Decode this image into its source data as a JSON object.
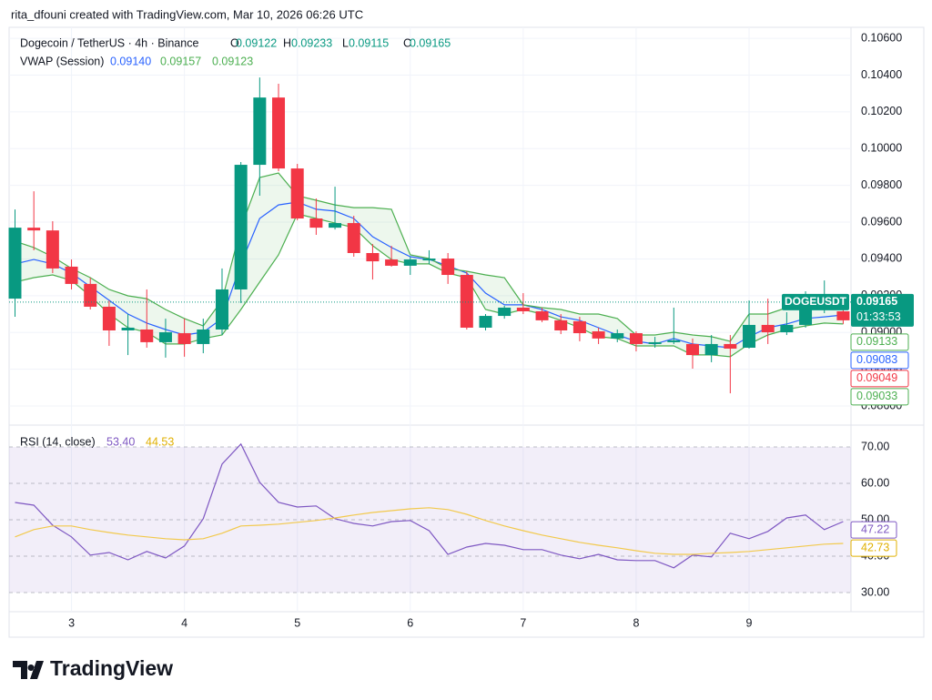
{
  "header": {
    "attribution": "rita_dfouni created with TradingView.com, Mar 10, 2026 06:26 UTC"
  },
  "chart_data": [
    {
      "type": "candlestick",
      "title": "Dogecoin / TetherUS · 4h · Binance",
      "ohlc_legend": [
        {
          "key": "O",
          "text": "0.09122"
        },
        {
          "key": "H",
          "text": "0.09233"
        },
        {
          "key": "L",
          "text": "0.09115"
        },
        {
          "key": "C",
          "text": "0.09165"
        }
      ],
      "indicator": {
        "title": "VWAP (Session)",
        "values": [
          "0.09140",
          "0.09157",
          "0.09123"
        ]
      },
      "categories": [
        null,
        null,
        null,
        "3",
        null,
        null,
        null,
        null,
        null,
        "4",
        null,
        null,
        null,
        null,
        null,
        "5",
        null,
        null,
        null,
        null,
        null,
        "6",
        null,
        null,
        null,
        null,
        null,
        "7",
        null,
        null,
        null,
        null,
        null,
        "8",
        null,
        null,
        null,
        null,
        null,
        "9",
        null,
        null,
        null,
        null,
        null
      ],
      "open": [
        0.09184,
        0.0957,
        0.09555,
        0.09358,
        0.09264,
        0.0914,
        0.09011,
        0.09016,
        0.08947,
        0.08996,
        0.08937,
        0.09016,
        0.09234,
        0.09912,
        0.10278,
        0.09892,
        0.0962,
        0.0957,
        0.09595,
        0.09432,
        0.09397,
        0.09363,
        0.09392,
        0.09402,
        0.09313,
        0.09026,
        0.0909,
        0.09135,
        0.09115,
        0.09066,
        0.09061,
        0.09006,
        0.08967,
        0.08996,
        0.08937,
        0.08947,
        0.08937,
        0.08877,
        0.08937,
        0.08917,
        0.09041,
        0.09001,
        0.09041,
        0.09125,
        0.09115
      ],
      "high": [
        0.09669,
        0.09768,
        0.09605,
        0.09397,
        0.09298,
        0.09174,
        0.091,
        0.09234,
        0.09075,
        0.09075,
        0.09075,
        0.09348,
        0.09927,
        0.10387,
        0.10353,
        0.09917,
        0.09729,
        0.09793,
        0.09635,
        0.09481,
        0.09471,
        0.09412,
        0.09447,
        0.09432,
        0.09333,
        0.091,
        0.09145,
        0.09214,
        0.09135,
        0.091,
        0.09085,
        0.09026,
        0.09016,
        0.09006,
        0.08976,
        0.09135,
        0.08967,
        0.08986,
        0.08986,
        0.09174,
        0.09184,
        0.0911,
        0.09224,
        0.09283,
        0.09135
      ],
      "low": [
        0.09085,
        0.09447,
        0.09323,
        0.09234,
        0.09125,
        0.08927,
        0.08877,
        0.08917,
        0.08863,
        0.08868,
        0.08887,
        0.08986,
        0.0916,
        0.09744,
        0.09877,
        0.0961,
        0.09531,
        0.0956,
        0.09412,
        0.09288,
        0.09358,
        0.09313,
        0.09372,
        0.09264,
        0.09016,
        0.09011,
        0.09075,
        0.091,
        0.09056,
        0.08991,
        0.08952,
        0.08937,
        0.08947,
        0.08897,
        0.08917,
        0.08937,
        0.08803,
        0.08838,
        0.08669,
        0.08912,
        0.08937,
        0.08986,
        0.09026,
        0.09105,
        0.09046
      ],
      "close": [
        0.0957,
        0.09555,
        0.09348,
        0.09264,
        0.0914,
        0.09011,
        0.09026,
        0.08947,
        0.09001,
        0.08937,
        0.09016,
        0.09234,
        0.09912,
        0.10278,
        0.09892,
        0.0962,
        0.0957,
        0.09595,
        0.09432,
        0.09387,
        0.09363,
        0.09397,
        0.09402,
        0.09313,
        0.09026,
        0.0909,
        0.09135,
        0.09115,
        0.09066,
        0.09011,
        0.08996,
        0.08967,
        0.08996,
        0.08937,
        0.08947,
        0.08957,
        0.08877,
        0.08937,
        0.08912,
        0.09041,
        0.09001,
        0.09041,
        0.09125,
        0.09135,
        0.09066
      ],
      "up_color": "#089981",
      "down_color": "#f23645",
      "series": [
        {
          "color": "#2962ff",
          "values": [
            0.09373,
            0.09397,
            0.09373,
            0.09323,
            0.09249,
            0.09175,
            0.091,
            0.09051,
            0.09016,
            0.08986,
            0.09001,
            0.09076,
            0.09373,
            0.0962,
            0.09694,
            0.09709,
            0.0967,
            0.0966,
            0.0962,
            0.09521,
            0.09462,
            0.09412,
            0.09397,
            0.09363,
            0.09323,
            0.09214,
            0.0915,
            0.0915,
            0.09125,
            0.09085,
            0.09066,
            0.09026,
            0.08986,
            0.08952,
            0.08937,
            0.08967,
            0.08937,
            0.08927,
            0.08917,
            0.08977,
            0.09026,
            0.09046,
            0.09076,
            0.09085,
            0.09095
          ]
        },
        {
          "color": "#4caf50",
          "values": [
            0.09496,
            0.09462,
            0.09412,
            0.09348,
            0.09298,
            0.09234,
            0.09199,
            0.09184,
            0.09125,
            0.09076,
            0.09036,
            0.09175,
            0.09571,
            0.09843,
            0.09867,
            0.09744,
            0.09719,
            0.09694,
            0.09679,
            0.09679,
            0.0967,
            0.09422,
            0.09402,
            0.09348,
            0.09333,
            0.09313,
            0.09298,
            0.0915,
            0.09135,
            0.09125,
            0.091,
            0.091,
            0.09076,
            0.08986,
            0.08986,
            0.09001,
            0.08986,
            0.08977,
            0.08952,
            0.091,
            0.091,
            0.09135,
            0.0915,
            0.0915,
            0.0915
          ]
        },
        {
          "color": "#4caf50",
          "values": [
            0.09274,
            0.09298,
            0.09313,
            0.09283,
            0.09199,
            0.091,
            0.09026,
            0.09001,
            0.08937,
            0.08937,
            0.08967,
            0.08986,
            0.09125,
            0.09274,
            0.09422,
            0.09645,
            0.0962,
            0.09595,
            0.09571,
            0.09472,
            0.09397,
            0.09373,
            0.09373,
            0.09323,
            0.09298,
            0.09125,
            0.091,
            0.09125,
            0.091,
            0.09066,
            0.09026,
            0.08977,
            0.08967,
            0.08927,
            0.08927,
            0.08927,
            0.08878,
            0.08878,
            0.08868,
            0.08937,
            0.08986,
            0.09016,
            0.09036,
            0.09051,
            0.09046
          ]
        }
      ],
      "band_fill": "#4caf50",
      "ylim": [
        0.08496,
        0.1066
      ],
      "yticks": [
        {
          "value": 0.106,
          "label": "0.10600"
        },
        {
          "value": 0.104,
          "label": "0.10400"
        },
        {
          "value": 0.102,
          "label": "0.10200"
        },
        {
          "value": 0.1,
          "label": "0.10000"
        },
        {
          "value": 0.098,
          "label": "0.09800"
        },
        {
          "value": 0.096,
          "label": "0.09600"
        },
        {
          "value": 0.094,
          "label": "0.09400"
        },
        {
          "value": 0.092,
          "label": "0.09200"
        },
        {
          "value": 0.09,
          "label": "0.09000"
        },
        {
          "value": 0.088,
          "label": "0.08800"
        },
        {
          "value": 0.086,
          "label": "0.08600"
        }
      ],
      "grid": true,
      "current_tag": {
        "symbol": "DOGEUSDT",
        "value": 0.09165,
        "countdown": "01:33:53",
        "color": "#089981"
      },
      "price_tags": [
        {
          "value": 0.09133,
          "color": "#4caf50"
        },
        {
          "value": 0.09083,
          "color": "#2962ff"
        },
        {
          "value": 0.09049,
          "color": "#f23645"
        },
        {
          "value": 0.09033,
          "color": "#4caf50"
        }
      ]
    },
    {
      "type": "line",
      "title": "RSI (14, close)",
      "legend_values": [
        "53.40",
        "44.53"
      ],
      "series": [
        {
          "color": "#7e57c2",
          "values": [
            54.75,
            54,
            48.5,
            45.3,
            40.3,
            41,
            39,
            41.3,
            39.5,
            42.8,
            50.3,
            65.3,
            70.8,
            60.3,
            54.8,
            53.5,
            53.8,
            50.3,
            49,
            48.3,
            49.5,
            49.8,
            47,
            40.5,
            42.5,
            43.5,
            43,
            41.8,
            41.8,
            40.3,
            39.3,
            40.5,
            39,
            38.8,
            38.8,
            36.8,
            40.3,
            39.8,
            46.3,
            44.8,
            46.8,
            50.5,
            51.3,
            47.3,
            49.5
          ]
        },
        {
          "color": "#f2c94c",
          "values": [
            45.3,
            47.3,
            48.3,
            48.3,
            47.3,
            46.5,
            45.8,
            45.3,
            44.8,
            44.5,
            44.8,
            46.3,
            48.3,
            48.5,
            48.8,
            49.3,
            49.8,
            50.5,
            51.3,
            52,
            52.5,
            53,
            53.3,
            52.8,
            51.5,
            49.8,
            48.3,
            47,
            45.8,
            44.8,
            43.8,
            43,
            42.3,
            41.5,
            40.8,
            40.5,
            40.5,
            40.8,
            41,
            41.3,
            41.8,
            42.3,
            42.8,
            43.3,
            43.5
          ]
        }
      ],
      "band_fill": "#7e57c2",
      "ylim": [
        24.75,
        76
      ],
      "yticks": [
        {
          "value": 70,
          "label": "70.00"
        },
        {
          "value": 60,
          "label": "60.00"
        },
        {
          "value": 50,
          "label": "50.00"
        },
        {
          "value": 40,
          "label": "40.00"
        },
        {
          "value": 30,
          "label": "30.00"
        }
      ],
      "grid": true,
      "price_tags": [
        {
          "value": 47.22,
          "color": "#7e57c2"
        },
        {
          "value": 42.73,
          "color": "#e0b000"
        }
      ]
    }
  ],
  "footer": {
    "logo": "TradingView"
  }
}
